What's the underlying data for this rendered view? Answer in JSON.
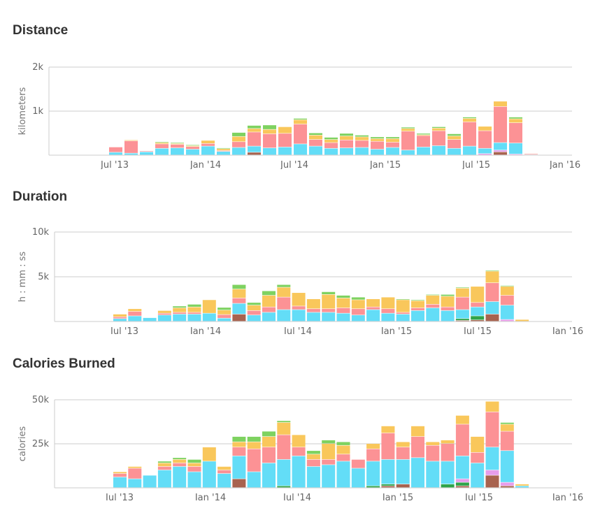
{
  "colors": {
    "cyan": "#63DDF7",
    "pink": "#FC9295",
    "yellow": "#F9C75B",
    "green": "#7ED260",
    "darkgreen": "#2FA44A",
    "brown": "#A8634F",
    "lilac": "#E79DEB",
    "grid": "#cccccc"
  },
  "chart_data": [
    {
      "type": "bar",
      "stacked": true,
      "title": "Distance",
      "ylabel": "kilometers",
      "ylim": [
        0,
        2000
      ],
      "yticks": [
        {
          "v": 1000,
          "label": "1k"
        },
        {
          "v": 2000,
          "label": "2k"
        }
      ],
      "xticks": [
        "Jul '13",
        "Jan '14",
        "Jul '14",
        "Jan '15",
        "Jul '15",
        "Jan '16"
      ],
      "months": [
        "2013-06",
        "2013-07",
        "2013-08",
        "2013-09",
        "2013-10",
        "2013-11",
        "2013-12",
        "2014-01",
        "2014-02",
        "2014-03",
        "2014-04",
        "2014-05",
        "2014-06",
        "2014-07",
        "2014-08",
        "2014-09",
        "2014-10",
        "2014-11",
        "2014-12",
        "2015-01",
        "2015-02",
        "2015-03",
        "2015-04",
        "2015-05",
        "2015-06",
        "2015-07",
        "2015-08",
        "2015-09"
      ],
      "series": [
        {
          "color": "brown",
          "values": [
            0,
            0,
            0,
            0,
            0,
            0,
            0,
            0,
            0,
            60,
            0,
            0,
            0,
            0,
            0,
            0,
            0,
            0,
            0,
            0,
            0,
            0,
            0,
            0,
            0,
            70,
            0,
            0
          ]
        },
        {
          "color": "lilac",
          "values": [
            0,
            0,
            0,
            0,
            0,
            0,
            0,
            0,
            0,
            0,
            0,
            0,
            0,
            0,
            0,
            0,
            0,
            0,
            0,
            0,
            0,
            0,
            0,
            0,
            30,
            40,
            20,
            0
          ]
        },
        {
          "color": "cyan",
          "values": [
            60,
            40,
            70,
            150,
            160,
            130,
            200,
            80,
            170,
            140,
            160,
            180,
            250,
            200,
            150,
            160,
            170,
            130,
            170,
            110,
            180,
            210,
            150,
            200,
            120,
            170,
            250,
            10
          ]
        },
        {
          "color": "pink",
          "values": [
            120,
            280,
            20,
            100,
            80,
            60,
            60,
            20,
            130,
            320,
            320,
            310,
            450,
            150,
            130,
            180,
            160,
            180,
            120,
            430,
            260,
            340,
            200,
            550,
            400,
            820,
            460,
            20
          ]
        },
        {
          "color": "yellow",
          "values": [
            0,
            20,
            0,
            30,
            20,
            20,
            70,
            40,
            120,
            80,
            100,
            150,
            100,
            100,
            70,
            90,
            80,
            60,
            80,
            60,
            20,
            60,
            80,
            80,
            100,
            120,
            90,
            10
          ]
        },
        {
          "color": "green",
          "values": [
            0,
            0,
            0,
            20,
            20,
            20,
            0,
            20,
            90,
            70,
            100,
            0,
            30,
            50,
            50,
            60,
            40,
            40,
            40,
            30,
            30,
            30,
            50,
            30,
            0,
            0,
            40,
            0
          ]
        }
      ]
    },
    {
      "type": "bar",
      "stacked": true,
      "title": "Duration",
      "ylabel": "h : mm : ss",
      "ylim": [
        0,
        10000
      ],
      "yticks": [
        {
          "v": 5000,
          "label": "5k"
        },
        {
          "v": 10000,
          "label": "10k"
        }
      ],
      "xticks": [
        "Jul '13",
        "Jan '14",
        "Jul '14",
        "Jan '15",
        "Jul '15",
        "Jan '16"
      ],
      "months": [
        "2013-06",
        "2013-07",
        "2013-08",
        "2013-09",
        "2013-10",
        "2013-11",
        "2013-12",
        "2014-01",
        "2014-02",
        "2014-03",
        "2014-04",
        "2014-05",
        "2014-06",
        "2014-07",
        "2014-08",
        "2014-09",
        "2014-10",
        "2014-11",
        "2014-12",
        "2015-01",
        "2015-02",
        "2015-03",
        "2015-04",
        "2015-05",
        "2015-06",
        "2015-07",
        "2015-08",
        "2015-09"
      ],
      "series": [
        {
          "color": "brown",
          "values": [
            0,
            0,
            0,
            0,
            0,
            0,
            0,
            0,
            800,
            0,
            0,
            0,
            0,
            0,
            0,
            0,
            0,
            0,
            0,
            0,
            0,
            0,
            0,
            100,
            150,
            800,
            0,
            0
          ]
        },
        {
          "color": "darkgreen",
          "values": [
            0,
            0,
            0,
            0,
            0,
            0,
            0,
            0,
            0,
            0,
            0,
            0,
            0,
            0,
            0,
            0,
            0,
            0,
            0,
            0,
            0,
            0,
            0,
            200,
            450,
            0,
            0,
            0
          ]
        },
        {
          "color": "lilac",
          "values": [
            0,
            0,
            0,
            0,
            0,
            0,
            0,
            0,
            0,
            0,
            0,
            0,
            0,
            0,
            0,
            0,
            0,
            0,
            0,
            0,
            0,
            0,
            0,
            0,
            0,
            0,
            200,
            0
          ]
        },
        {
          "color": "cyan",
          "values": [
            300,
            600,
            400,
            700,
            800,
            800,
            900,
            350,
            1200,
            700,
            1000,
            1300,
            1300,
            1000,
            1000,
            900,
            700,
            1300,
            900,
            800,
            1200,
            1500,
            1200,
            1000,
            1000,
            1400,
            1600,
            0
          ]
        },
        {
          "color": "pink",
          "values": [
            200,
            500,
            0,
            200,
            200,
            200,
            0,
            400,
            600,
            500,
            600,
            1400,
            400,
            400,
            400,
            600,
            700,
            300,
            500,
            200,
            300,
            400,
            400,
            1400,
            500,
            2100,
            1100,
            0
          ]
        },
        {
          "color": "yellow",
          "values": [
            300,
            300,
            0,
            300,
            500,
            600,
            1500,
            500,
            1000,
            600,
            1300,
            1100,
            1500,
            1100,
            1600,
            1100,
            1000,
            900,
            1300,
            1400,
            800,
            1000,
            1200,
            1000,
            1800,
            1300,
            1000,
            200
          ]
        },
        {
          "color": "green",
          "values": [
            0,
            0,
            0,
            0,
            200,
            300,
            0,
            300,
            500,
            300,
            500,
            300,
            0,
            0,
            300,
            300,
            300,
            0,
            0,
            100,
            100,
            100,
            200,
            100,
            0,
            100,
            100,
            0
          ]
        }
      ]
    },
    {
      "type": "bar",
      "stacked": true,
      "title": "Calories Burned",
      "ylabel": "calories",
      "ylim": [
        0,
        50000
      ],
      "yticks": [
        {
          "v": 25000,
          "label": "25k"
        },
        {
          "v": 50000,
          "label": "50k"
        }
      ],
      "xticks": [
        "Jul '13",
        "Jan '14",
        "Jul '14",
        "Jan '15",
        "Jul '15",
        "Jan '16"
      ],
      "months": [
        "2013-06",
        "2013-07",
        "2013-08",
        "2013-09",
        "2013-10",
        "2013-11",
        "2013-12",
        "2014-01",
        "2014-02",
        "2014-03",
        "2014-04",
        "2014-05",
        "2014-06",
        "2014-07",
        "2014-08",
        "2014-09",
        "2014-10",
        "2014-11",
        "2014-12",
        "2015-01",
        "2015-02",
        "2015-03",
        "2015-04",
        "2015-05",
        "2015-06",
        "2015-07",
        "2015-08",
        "2015-09"
      ],
      "series": [
        {
          "color": "brown",
          "values": [
            0,
            0,
            0,
            0,
            0,
            0,
            0,
            0,
            5000,
            0,
            0,
            0,
            0,
            0,
            0,
            0,
            0,
            0,
            1000,
            2000,
            0,
            0,
            0,
            1000,
            0,
            7000,
            1000,
            0
          ]
        },
        {
          "color": "darkgreen",
          "values": [
            0,
            0,
            0,
            0,
            0,
            0,
            0,
            0,
            0,
            0,
            0,
            1000,
            0,
            0,
            0,
            0,
            0,
            1000,
            1000,
            0,
            0,
            0,
            2000,
            2000,
            0,
            0,
            0,
            0
          ]
        },
        {
          "color": "lilac",
          "values": [
            0,
            0,
            0,
            0,
            0,
            0,
            0,
            0,
            0,
            0,
            0,
            0,
            0,
            0,
            0,
            0,
            0,
            0,
            0,
            0,
            0,
            0,
            0,
            2000,
            0,
            3000,
            2000,
            0
          ]
        },
        {
          "color": "cyan",
          "values": [
            6000,
            5000,
            7000,
            10000,
            12000,
            9000,
            15000,
            8000,
            13000,
            9000,
            14000,
            15000,
            18000,
            12000,
            13000,
            15000,
            11000,
            14000,
            14000,
            14000,
            17000,
            15000,
            13000,
            13000,
            14000,
            13000,
            18000,
            1000
          ]
        },
        {
          "color": "pink",
          "values": [
            2000,
            6000,
            0,
            2000,
            2000,
            3000,
            0,
            2000,
            5000,
            13000,
            9000,
            14000,
            5000,
            4000,
            3000,
            4000,
            5000,
            7000,
            15000,
            7000,
            12000,
            9000,
            10000,
            18000,
            6000,
            20000,
            11000,
            0
          ]
        },
        {
          "color": "yellow",
          "values": [
            1000,
            1000,
            0,
            2000,
            2000,
            2000,
            8000,
            2000,
            3000,
            4000,
            6000,
            7000,
            7000,
            3000,
            9000,
            5000,
            0,
            3000,
            4000,
            3000,
            6000,
            2000,
            2000,
            5000,
            9000,
            6000,
            4000,
            1000
          ]
        },
        {
          "color": "green",
          "values": [
            0,
            0,
            0,
            1000,
            1000,
            2000,
            0,
            0,
            3000,
            3000,
            3000,
            1000,
            0,
            2000,
            2000,
            2000,
            0,
            0,
            0,
            0,
            0,
            0,
            0,
            0,
            0,
            0,
            1000,
            0
          ]
        }
      ]
    }
  ]
}
